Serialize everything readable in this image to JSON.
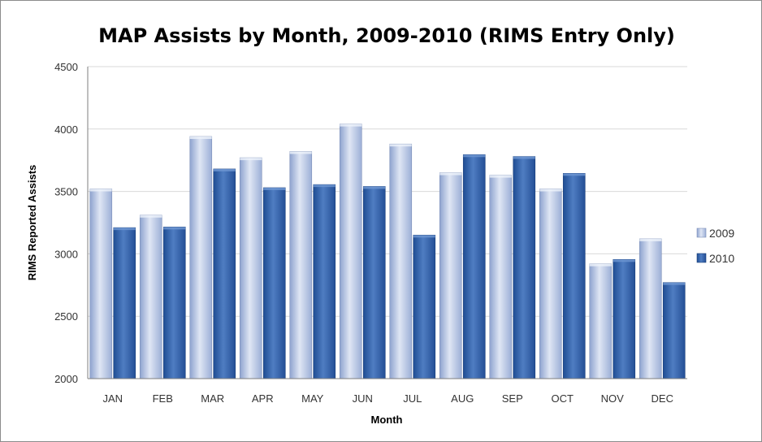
{
  "chart_data": {
    "type": "bar",
    "title": "MAP Assists by Month, 2009-2010 (RIMS Entry Only)",
    "xlabel": "Month",
    "ylabel": "RIMS Reported Assists",
    "ylim": [
      2000,
      4500
    ],
    "yticks": [
      2000,
      2500,
      3000,
      3500,
      4000,
      4500
    ],
    "grid": true,
    "legend_position": "right",
    "categories": [
      "JAN",
      "FEB",
      "MAR",
      "APR",
      "MAY",
      "JUN",
      "JUL",
      "AUG",
      "SEP",
      "OCT",
      "NOV",
      "DEC"
    ],
    "series": [
      {
        "name": "2009",
        "color": "#b4c3e2",
        "values": [
          3520,
          3310,
          3940,
          3770,
          3820,
          4040,
          3880,
          3650,
          3630,
          3520,
          2920,
          3120
        ]
      },
      {
        "name": "2010",
        "color": "#3565ad",
        "values": [
          3210,
          3215,
          3680,
          3530,
          3555,
          3540,
          3150,
          3795,
          3780,
          3645,
          2955,
          2770
        ]
      }
    ]
  }
}
